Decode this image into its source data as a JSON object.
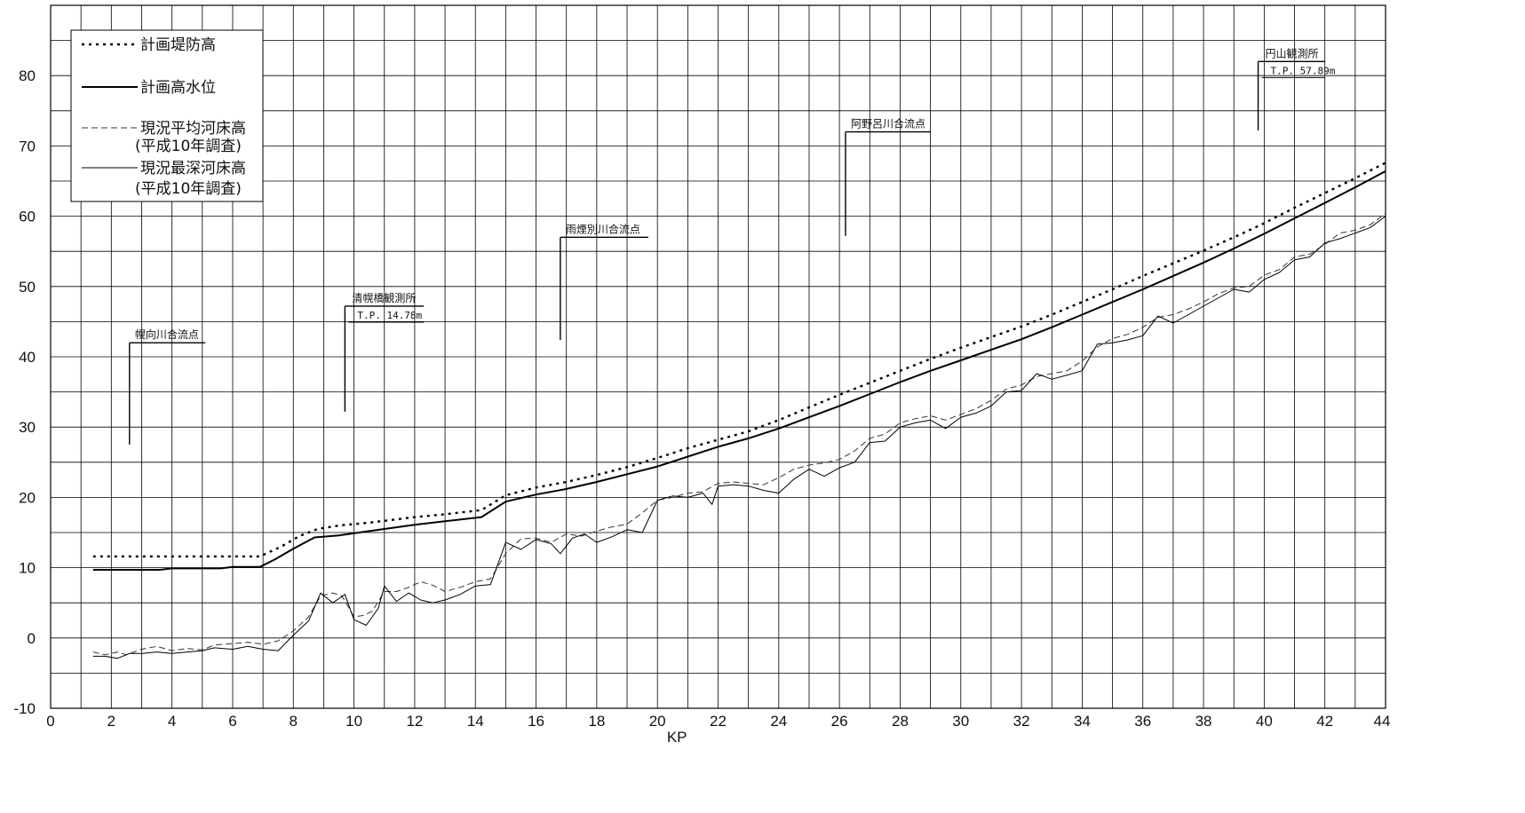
{
  "chart_data": {
    "type": "line",
    "xlabel": "KP",
    "ylabel": "",
    "xlim": [
      0,
      44
    ],
    "ylim": [
      -10,
      90
    ],
    "x_ticks": [
      0,
      2,
      4,
      6,
      8,
      10,
      12,
      14,
      16,
      18,
      20,
      22,
      24,
      26,
      28,
      30,
      32,
      34,
      36,
      38,
      40,
      42,
      44
    ],
    "y_ticks": [
      -10,
      0,
      10,
      20,
      30,
      40,
      50,
      60,
      70,
      80
    ],
    "grid": true,
    "legend_position": "top-left",
    "legend": [
      {
        "label": "計画堤防高",
        "style": "dotted"
      },
      {
        "label": "計画高水位",
        "style": "solid-bold"
      },
      {
        "label": "現況平均河床高",
        "sub": "(平成10年調査)",
        "style": "dashed"
      },
      {
        "label": "現況最深河床高",
        "sub": "(平成10年調査)",
        "style": "thin"
      }
    ],
    "series": [
      {
        "name": "計画堤防高",
        "style": "dotted",
        "points": [
          [
            1.4,
            11.6
          ],
          [
            6.9,
            11.6
          ],
          [
            7.6,
            13.0
          ],
          [
            8.2,
            14.5
          ],
          [
            8.8,
            15.5
          ],
          [
            9.5,
            16.0
          ],
          [
            10.5,
            16.4
          ],
          [
            12.0,
            17.2
          ],
          [
            13.0,
            17.6
          ],
          [
            14.2,
            18.2
          ],
          [
            15.0,
            20.3
          ],
          [
            16.0,
            21.4
          ],
          [
            17.0,
            22.2
          ],
          [
            18.0,
            23.2
          ],
          [
            19.0,
            24.3
          ],
          [
            20.0,
            25.6
          ],
          [
            21.0,
            27.0
          ],
          [
            22.0,
            28.2
          ],
          [
            23.0,
            29.4
          ],
          [
            24.0,
            31.0
          ],
          [
            25.0,
            32.8
          ],
          [
            26.0,
            34.6
          ],
          [
            27.0,
            36.3
          ],
          [
            28.0,
            38.0
          ],
          [
            29.0,
            39.7
          ],
          [
            30.0,
            41.3
          ],
          [
            31.0,
            42.8
          ],
          [
            32.0,
            44.3
          ],
          [
            33.0,
            46.0
          ],
          [
            34.0,
            47.8
          ],
          [
            35.0,
            49.6
          ],
          [
            36.0,
            51.5
          ],
          [
            37.0,
            53.3
          ],
          [
            38.0,
            55.1
          ],
          [
            39.0,
            57.0
          ],
          [
            40.0,
            59.0
          ],
          [
            41.0,
            61.2
          ],
          [
            42.0,
            63.3
          ],
          [
            43.0,
            65.4
          ],
          [
            44.0,
            67.6
          ]
        ]
      },
      {
        "name": "計画高水位",
        "style": "solid-bold",
        "points": [
          [
            1.4,
            9.7
          ],
          [
            3.6,
            9.7
          ],
          [
            4.0,
            9.9
          ],
          [
            5.6,
            9.9
          ],
          [
            6.0,
            10.1
          ],
          [
            6.9,
            10.1
          ],
          [
            7.4,
            11.2
          ],
          [
            8.0,
            12.7
          ],
          [
            8.7,
            14.3
          ],
          [
            9.5,
            14.6
          ],
          [
            10.5,
            15.2
          ],
          [
            12.0,
            16.1
          ],
          [
            13.0,
            16.6
          ],
          [
            14.2,
            17.2
          ],
          [
            15.0,
            19.4
          ],
          [
            16.0,
            20.4
          ],
          [
            17.0,
            21.2
          ],
          [
            18.0,
            22.2
          ],
          [
            19.0,
            23.3
          ],
          [
            20.0,
            24.4
          ],
          [
            21.0,
            25.8
          ],
          [
            22.0,
            27.2
          ],
          [
            23.0,
            28.4
          ],
          [
            24.0,
            29.8
          ],
          [
            25.0,
            31.4
          ],
          [
            26.0,
            33.0
          ],
          [
            27.0,
            34.7
          ],
          [
            28.0,
            36.4
          ],
          [
            29.0,
            38.0
          ],
          [
            30.0,
            39.5
          ],
          [
            31.0,
            41.0
          ],
          [
            32.0,
            42.5
          ],
          [
            33.0,
            44.2
          ],
          [
            34.0,
            46.0
          ],
          [
            35.0,
            47.8
          ],
          [
            36.0,
            49.6
          ],
          [
            37.0,
            51.5
          ],
          [
            38.0,
            53.4
          ],
          [
            39.0,
            55.4
          ],
          [
            40.0,
            57.5
          ],
          [
            41.0,
            59.7
          ],
          [
            42.0,
            61.9
          ],
          [
            43.0,
            64.1
          ],
          [
            44.0,
            66.4
          ]
        ]
      },
      {
        "name": "現況平均河床高",
        "style": "dashed",
        "points": [
          [
            1.4,
            -2.0
          ],
          [
            1.8,
            -2.4
          ],
          [
            2.2,
            -2.0
          ],
          [
            2.5,
            -2.4
          ],
          [
            3.0,
            -1.6
          ],
          [
            3.5,
            -1.2
          ],
          [
            4.0,
            -1.8
          ],
          [
            4.5,
            -1.5
          ],
          [
            5.0,
            -1.7
          ],
          [
            5.4,
            -1.0
          ],
          [
            6.0,
            -0.8
          ],
          [
            6.5,
            -0.6
          ],
          [
            7.0,
            -0.9
          ],
          [
            7.5,
            -0.4
          ],
          [
            8.0,
            1.0
          ],
          [
            8.5,
            3.0
          ],
          [
            8.9,
            6.0
          ],
          [
            9.3,
            6.4
          ],
          [
            9.6,
            6.0
          ],
          [
            10.0,
            3.0
          ],
          [
            10.3,
            3.2
          ],
          [
            10.6,
            3.8
          ],
          [
            11.0,
            6.6
          ],
          [
            11.4,
            6.6
          ],
          [
            11.8,
            7.2
          ],
          [
            12.2,
            8.0
          ],
          [
            12.6,
            7.5
          ],
          [
            13.0,
            6.6
          ],
          [
            13.5,
            7.2
          ],
          [
            14.0,
            8.0
          ],
          [
            14.5,
            8.4
          ],
          [
            15.0,
            12.0
          ],
          [
            15.5,
            14.1
          ],
          [
            16.0,
            14.2
          ],
          [
            16.5,
            13.6
          ],
          [
            17.0,
            14.8
          ],
          [
            17.5,
            14.5
          ],
          [
            18.0,
            15.2
          ],
          [
            18.5,
            15.8
          ],
          [
            19.0,
            16.2
          ],
          [
            19.5,
            17.8
          ],
          [
            20.0,
            19.6
          ],
          [
            20.5,
            20.0
          ],
          [
            21.0,
            20.6
          ],
          [
            21.5,
            20.8
          ],
          [
            22.0,
            22.0
          ],
          [
            22.5,
            22.2
          ],
          [
            23.0,
            22.0
          ],
          [
            23.5,
            21.8
          ],
          [
            24.0,
            22.8
          ],
          [
            24.5,
            24.0
          ],
          [
            25.0,
            24.6
          ],
          [
            25.5,
            24.9
          ],
          [
            26.0,
            25.4
          ],
          [
            26.5,
            26.6
          ],
          [
            27.0,
            28.4
          ],
          [
            27.5,
            29.0
          ],
          [
            28.0,
            30.6
          ],
          [
            28.5,
            31.2
          ],
          [
            29.0,
            31.6
          ],
          [
            29.5,
            31.0
          ],
          [
            30.0,
            31.8
          ],
          [
            30.5,
            32.6
          ],
          [
            31.0,
            33.8
          ],
          [
            31.5,
            35.4
          ],
          [
            32.0,
            36.0
          ],
          [
            32.5,
            37.2
          ],
          [
            33.0,
            37.6
          ],
          [
            33.5,
            38.0
          ],
          [
            34.0,
            39.4
          ],
          [
            34.5,
            41.4
          ],
          [
            35.0,
            42.6
          ],
          [
            35.5,
            43.2
          ],
          [
            36.0,
            44.2
          ],
          [
            36.5,
            45.6
          ],
          [
            37.0,
            46.0
          ],
          [
            37.5,
            46.8
          ],
          [
            38.0,
            47.8
          ],
          [
            38.5,
            49.0
          ],
          [
            39.0,
            49.8
          ],
          [
            39.5,
            50.0
          ],
          [
            40.0,
            51.6
          ],
          [
            40.5,
            52.4
          ],
          [
            41.0,
            54.2
          ],
          [
            41.5,
            54.6
          ],
          [
            42.0,
            56.0
          ],
          [
            42.5,
            57.6
          ],
          [
            43.0,
            58.0
          ],
          [
            43.5,
            58.8
          ],
          [
            44.0,
            60.4
          ]
        ]
      },
      {
        "name": "現況最深河床高",
        "style": "thin",
        "points": [
          [
            1.4,
            -2.6
          ],
          [
            1.8,
            -2.6
          ],
          [
            2.2,
            -2.9
          ],
          [
            2.6,
            -2.2
          ],
          [
            3.0,
            -2.2
          ],
          [
            3.5,
            -2.0
          ],
          [
            4.0,
            -2.2
          ],
          [
            4.5,
            -2.0
          ],
          [
            5.0,
            -1.8
          ],
          [
            5.4,
            -1.4
          ],
          [
            6.0,
            -1.6
          ],
          [
            6.5,
            -1.2
          ],
          [
            7.0,
            -1.6
          ],
          [
            7.5,
            -1.8
          ],
          [
            8.0,
            0.4
          ],
          [
            8.5,
            2.4
          ],
          [
            8.9,
            6.4
          ],
          [
            9.3,
            5.0
          ],
          [
            9.7,
            6.2
          ],
          [
            10.0,
            2.6
          ],
          [
            10.4,
            1.8
          ],
          [
            10.8,
            4.2
          ],
          [
            11.0,
            7.4
          ],
          [
            11.4,
            5.2
          ],
          [
            11.8,
            6.4
          ],
          [
            12.2,
            5.4
          ],
          [
            12.6,
            5.0
          ],
          [
            13.0,
            5.4
          ],
          [
            13.5,
            6.2
          ],
          [
            14.0,
            7.4
          ],
          [
            14.5,
            7.6
          ],
          [
            15.0,
            13.6
          ],
          [
            15.5,
            12.6
          ],
          [
            16.0,
            14.0
          ],
          [
            16.5,
            13.4
          ],
          [
            16.8,
            12.0
          ],
          [
            17.2,
            14.2
          ],
          [
            17.6,
            14.8
          ],
          [
            18.0,
            13.6
          ],
          [
            18.5,
            14.4
          ],
          [
            19.0,
            15.4
          ],
          [
            19.5,
            15.0
          ],
          [
            20.0,
            19.6
          ],
          [
            20.5,
            20.2
          ],
          [
            21.0,
            20.0
          ],
          [
            21.5,
            20.6
          ],
          [
            21.8,
            19.0
          ],
          [
            22.0,
            21.6
          ],
          [
            22.5,
            21.8
          ],
          [
            23.0,
            21.6
          ],
          [
            23.5,
            21.0
          ],
          [
            24.0,
            20.6
          ],
          [
            24.5,
            22.6
          ],
          [
            25.0,
            24.0
          ],
          [
            25.5,
            23.0
          ],
          [
            26.0,
            24.2
          ],
          [
            26.5,
            25.0
          ],
          [
            27.0,
            27.8
          ],
          [
            27.5,
            28.0
          ],
          [
            28.0,
            30.0
          ],
          [
            28.5,
            30.6
          ],
          [
            29.0,
            31.0
          ],
          [
            29.5,
            29.8
          ],
          [
            30.0,
            31.4
          ],
          [
            30.5,
            32.0
          ],
          [
            31.0,
            33.0
          ],
          [
            31.5,
            35.0
          ],
          [
            32.0,
            35.2
          ],
          [
            32.5,
            37.6
          ],
          [
            33.0,
            36.8
          ],
          [
            33.5,
            37.4
          ],
          [
            34.0,
            38.0
          ],
          [
            34.5,
            41.8
          ],
          [
            35.0,
            42.0
          ],
          [
            35.5,
            42.4
          ],
          [
            36.0,
            43.0
          ],
          [
            36.5,
            45.8
          ],
          [
            37.0,
            44.8
          ],
          [
            37.5,
            46.0
          ],
          [
            38.0,
            47.2
          ],
          [
            38.5,
            48.4
          ],
          [
            39.0,
            49.6
          ],
          [
            39.5,
            49.2
          ],
          [
            40.0,
            51.0
          ],
          [
            40.5,
            52.0
          ],
          [
            41.0,
            53.8
          ],
          [
            41.5,
            54.2
          ],
          [
            42.0,
            56.2
          ],
          [
            42.5,
            56.8
          ],
          [
            43.0,
            57.6
          ],
          [
            43.5,
            58.4
          ],
          [
            44.0,
            60.0
          ]
        ]
      }
    ],
    "annotations": [
      {
        "label": "幌向川合流点",
        "sub": "",
        "x": 2.6,
        "y_bottom": 27.5,
        "y_top": 42.0,
        "x_end": 5.1
      },
      {
        "label": "清幌橋観測所",
        "sub": "T.P. 14.78m",
        "x": 9.7,
        "y_bottom": 32.2,
        "y_top": 47.2,
        "x_end": 12.3
      },
      {
        "label": "雨煙別川合流点",
        "sub": "",
        "x": 16.8,
        "y_bottom": 42.4,
        "y_top": 57.0,
        "x_end": 19.7
      },
      {
        "label": "阿野呂川合流点",
        "sub": "",
        "x": 26.2,
        "y_bottom": 57.2,
        "y_top": 72.0,
        "x_end": 29.0
      },
      {
        "label": "円山観測所",
        "sub": "T.P. 57.89m",
        "x": 39.8,
        "y_bottom": 72.2,
        "y_top": 82.0,
        "x_end": 42.0
      }
    ]
  }
}
